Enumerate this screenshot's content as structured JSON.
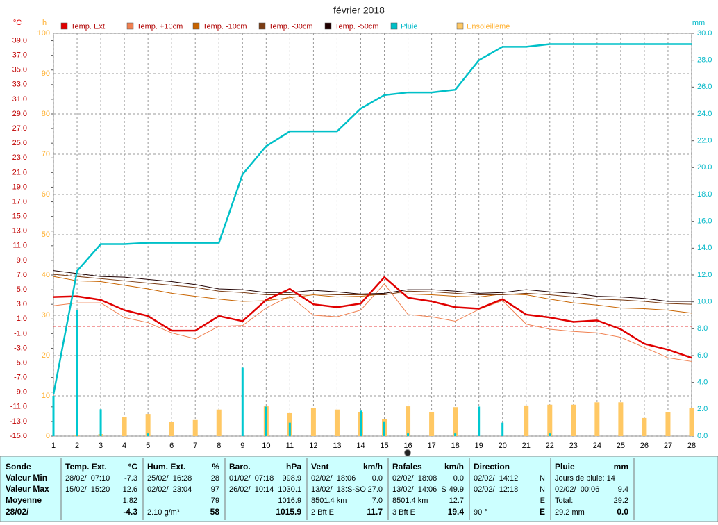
{
  "chart_data": {
    "type": "weather",
    "title": "février 2018",
    "y_unit": "°C",
    "y3_unit": "h",
    "y2_unit": "mm",
    "x": [
      1,
      2,
      3,
      4,
      5,
      6,
      7,
      8,
      9,
      10,
      11,
      12,
      13,
      14,
      15,
      16,
      17,
      18,
      19,
      20,
      21,
      22,
      23,
      24,
      25,
      26,
      27,
      28
    ],
    "xlim": [
      1,
      28
    ],
    "xticks": [
      1,
      2,
      3,
      4,
      5,
      6,
      7,
      8,
      9,
      10,
      11,
      12,
      13,
      14,
      15,
      16,
      17,
      18,
      19,
      20,
      21,
      22,
      23,
      24,
      25,
      26,
      27,
      28
    ],
    "ylim": [
      -15,
      40
    ],
    "yticks": [
      {
        "value": -15,
        "label": "-15.0"
      },
      {
        "value": -13,
        "label": "-13.0"
      },
      {
        "value": -11,
        "label": "-11.0"
      },
      {
        "value": -9,
        "label": "-9.0"
      },
      {
        "value": -7,
        "label": "-7.0"
      },
      {
        "value": -5,
        "label": "-5.0"
      },
      {
        "value": -3,
        "label": "-3.0"
      },
      {
        "value": -1,
        "label": "-1.0"
      },
      {
        "value": 1,
        "label": "1.0"
      },
      {
        "value": 3,
        "label": "3.0"
      },
      {
        "value": 5,
        "label": "5.0"
      },
      {
        "value": 7,
        "label": "7.0"
      },
      {
        "value": 9,
        "label": "9.0"
      },
      {
        "value": 11,
        "label": "11.0"
      },
      {
        "value": 13,
        "label": "13.0"
      },
      {
        "value": 15,
        "label": "15.0"
      },
      {
        "value": 17,
        "label": "17.0"
      },
      {
        "value": 19,
        "label": "19.0"
      },
      {
        "value": 21,
        "label": "21.0"
      },
      {
        "value": 23,
        "label": "23.0"
      },
      {
        "value": 25,
        "label": "25.0"
      },
      {
        "value": 27,
        "label": "27.0"
      },
      {
        "value": 29,
        "label": "29.0"
      },
      {
        "value": 31,
        "label": "31.0"
      },
      {
        "value": 33,
        "label": "33.0"
      },
      {
        "value": 35,
        "label": "35.0"
      },
      {
        "value": 37,
        "label": "37.0"
      },
      {
        "value": 39,
        "label": "39.0"
      }
    ],
    "y2lim": [
      0,
      30
    ],
    "y2ticks": [
      {
        "value": 0,
        "label": "0.0"
      },
      {
        "value": 2,
        "label": "2.0"
      },
      {
        "value": 4,
        "label": "4.0"
      },
      {
        "value": 6,
        "label": "6.0"
      },
      {
        "value": 8,
        "label": "8.0"
      },
      {
        "value": 10,
        "label": "10.0"
      },
      {
        "value": 12,
        "label": "12.0"
      },
      {
        "value": 14,
        "label": "14.0"
      },
      {
        "value": 16,
        "label": "16.0"
      },
      {
        "value": 18,
        "label": "18.0"
      },
      {
        "value": 20,
        "label": "20.0"
      },
      {
        "value": 22,
        "label": "22.0"
      },
      {
        "value": 24,
        "label": "24.0"
      },
      {
        "value": 26,
        "label": "26.0"
      },
      {
        "value": 28,
        "label": "28.0"
      },
      {
        "value": 30,
        "label": "30.0"
      }
    ],
    "y3lim": [
      0,
      100
    ],
    "y3ticks": [
      0,
      10,
      20,
      30,
      40,
      50,
      60,
      70,
      80,
      90,
      100
    ],
    "grid": true,
    "zero_line": true,
    "series": [
      {
        "name": "Ensoleilleme",
        "type": "bar",
        "axis": "y3",
        "color": "#ffc864",
        "label_color": "#ffb030",
        "values": [
          0,
          0.3,
          0.5,
          4.7,
          5.5,
          3.6,
          4.0,
          6.6,
          0,
          7.4,
          5.7,
          6.9,
          6.6,
          6.0,
          4.3,
          7.4,
          5.9,
          7.2,
          0,
          0,
          7.6,
          7.8,
          7.8,
          8.4,
          8.4,
          4.5,
          5.9,
          6.9
        ]
      },
      {
        "type": "bar",
        "axis": "y2",
        "color": "#00c8d0",
        "values": [
          3.0,
          9.4,
          2.0,
          0,
          0.2,
          0,
          0,
          0,
          5.1,
          2.2,
          1.0,
          0,
          0,
          1.9,
          1.1,
          0.2,
          0,
          0.2,
          2.2,
          1.0,
          0,
          0.2,
          0,
          0,
          0,
          0,
          0,
          0
        ]
      },
      {
        "name": "Temp. +10cm",
        "type": "line",
        "color": "#f08050",
        "width": 1,
        "label_color": "#b00000",
        "values": [
          2.8,
          3.2,
          3.2,
          1.2,
          0.5,
          -0.9,
          -1.7,
          0.0,
          0.1,
          2.5,
          4.1,
          1.5,
          1.3,
          2.2,
          5.8,
          1.6,
          1.3,
          0.7,
          2.3,
          3.5,
          0.3,
          -0.4,
          -0.7,
          -0.9,
          -1.5,
          -2.9,
          -4.3,
          -4.8
        ]
      },
      {
        "name": "Temp. -10cm",
        "type": "line",
        "color": "#c86400",
        "width": 1,
        "label_color": "#b00000",
        "values": [
          6.8,
          6.2,
          6.1,
          5.6,
          5.1,
          4.5,
          4.1,
          3.7,
          3.4,
          3.5,
          3.9,
          4.3,
          4.0,
          4.1,
          4.4,
          4.4,
          4.3,
          4.1,
          4.0,
          4.4,
          4.3,
          3.7,
          3.2,
          2.9,
          2.5,
          2.4,
          2.2,
          1.8
        ]
      },
      {
        "name": "Temp. -30cm",
        "type": "line",
        "color": "#7a3c14",
        "width": 1,
        "label_color": "#b00000",
        "values": [
          7.1,
          6.8,
          6.5,
          6.2,
          5.9,
          5.6,
          5.3,
          4.8,
          4.6,
          4.3,
          4.3,
          4.4,
          4.3,
          4.3,
          4.3,
          4.8,
          4.7,
          4.5,
          4.3,
          4.3,
          4.5,
          4.3,
          4.0,
          3.7,
          3.6,
          3.4,
          3.1,
          3.0
        ]
      },
      {
        "name": "Temp. -50cm",
        "type": "line",
        "color": "#200000",
        "width": 1,
        "label_color": "#b00000",
        "values": [
          7.6,
          7.2,
          6.8,
          6.7,
          6.4,
          6.1,
          5.7,
          5.1,
          5.0,
          4.6,
          4.6,
          4.9,
          4.7,
          4.4,
          4.5,
          5.0,
          5.0,
          4.8,
          4.5,
          4.6,
          5.0,
          4.7,
          4.5,
          4.1,
          4.0,
          3.8,
          3.4,
          3.4
        ]
      },
      {
        "name": "Temp. Ext.",
        "type": "line",
        "color": "#e00000",
        "width": 2.5,
        "label_color": "#b00000",
        "values": [
          4.0,
          4.1,
          3.6,
          2.2,
          1.4,
          -0.6,
          -0.6,
          1.4,
          0.7,
          3.6,
          5.1,
          3.0,
          2.6,
          3.1,
          6.7,
          3.9,
          3.4,
          2.6,
          2.4,
          3.7,
          1.6,
          1.2,
          0.6,
          0.8,
          -0.4,
          -2.4,
          -3.2,
          -4.3
        ]
      },
      {
        "name": "Pluie",
        "type": "line",
        "axis": "y2",
        "color": "#00c0c8",
        "width": 2.5,
        "label_color": "#00b8c8",
        "values": [
          3.1,
          12.3,
          14.3,
          14.3,
          14.4,
          14.4,
          14.4,
          14.4,
          19.5,
          21.6,
          22.7,
          22.7,
          22.7,
          24.4,
          25.4,
          25.6,
          25.6,
          25.8,
          28.0,
          29.0,
          29.0,
          29.2,
          29.2,
          29.2,
          29.2,
          29.2,
          29.2,
          29.2
        ]
      }
    ],
    "legend_order": [
      6,
      2,
      3,
      4,
      5,
      7,
      0
    ]
  },
  "summary": {
    "row_labels": [
      "Sonde",
      "Valeur Min",
      "Valeur Max",
      "Moyenne",
      "28/02/"
    ],
    "columns": [
      {
        "title": "Temp. Ext.",
        "unit": "°C",
        "cells": [
          [
            "28/02/  07:10",
            "-7.3"
          ],
          [
            "15/02/  15:20",
            "12.6"
          ],
          [
            null,
            "1.82"
          ],
          [
            null,
            "-4.3"
          ]
        ]
      },
      {
        "title": "Hum. Ext.",
        "unit": "%",
        "cells": [
          [
            "25/02/  16:28",
            "28"
          ],
          [
            "02/02/  23:04",
            "97"
          ],
          [
            null,
            "79"
          ],
          [
            "2.10 g/m³",
            "58"
          ]
        ]
      },
      {
        "title": "Baro.",
        "unit": "hPa",
        "cells": [
          [
            "01/02/  07:18",
            "998.9"
          ],
          [
            "26/02/  10:14",
            "1030.1"
          ],
          [
            null,
            "1016.9"
          ],
          [
            null,
            "1015.9"
          ]
        ]
      },
      {
        "title": "Vent",
        "unit": "km/h",
        "cells": [
          [
            "02/02/  18:06",
            "0.0"
          ],
          [
            "13/02/  13:S-SO",
            "27.0"
          ],
          [
            "8501.4 km",
            "7.0"
          ],
          [
            "2 Bft E",
            "11.7"
          ]
        ]
      },
      {
        "title": "Rafales",
        "unit": "km/h",
        "cells": [
          [
            "02/02/  18:08",
            "0.0"
          ],
          [
            "13/02/  14:06  S",
            "49.9"
          ],
          [
            "8501.4 km",
            "12.7"
          ],
          [
            "3 Bft E",
            "19.4"
          ]
        ]
      },
      {
        "title": "Direction",
        "unit": null,
        "cells": [
          [
            "02/02/  14:12",
            "N"
          ],
          [
            "02/02/  12:18",
            "N"
          ],
          [
            null,
            "E"
          ],
          [
            "90 °",
            "E"
          ]
        ]
      },
      {
        "title": "Pluie",
        "unit": "mm",
        "cells": [
          [
            "Jours de pluie: 14",
            null
          ],
          [
            "02/02/  00:06",
            "9.4"
          ],
          [
            "Total:",
            "29.2"
          ],
          [
            "29.2 mm",
            "0.0"
          ]
        ]
      }
    ]
  }
}
